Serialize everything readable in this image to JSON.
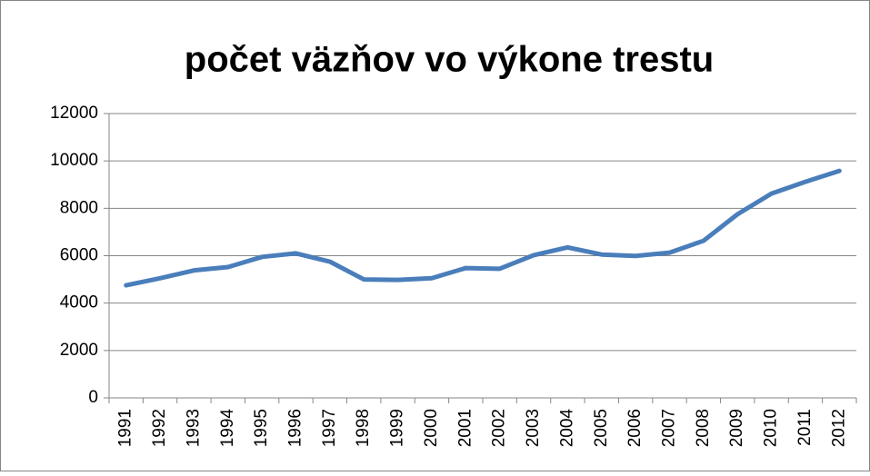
{
  "chart_data": {
    "type": "line",
    "title": "počet väzňov vo výkone trestu",
    "categories": [
      "1991",
      "1992",
      "1993",
      "1994",
      "1995",
      "1996",
      "1997",
      "1998",
      "1999",
      "2000",
      "2001",
      "2002",
      "2003",
      "2004",
      "2005",
      "2006",
      "2007",
      "2008",
      "2009",
      "2010",
      "2011",
      "2012"
    ],
    "series": [
      {
        "color": "#4a7ebb",
        "values": [
          4750,
          5050,
          5380,
          5520,
          5950,
          6100,
          5750,
          5000,
          4980,
          5050,
          5480,
          5450,
          6020,
          6350,
          6050,
          5990,
          6130,
          6630,
          7750,
          8620,
          9120,
          9580
        ]
      }
    ],
    "ylim": [
      0,
      12000
    ],
    "yticks": [
      0,
      2000,
      4000,
      6000,
      8000,
      10000,
      12000
    ],
    "grid": true
  }
}
